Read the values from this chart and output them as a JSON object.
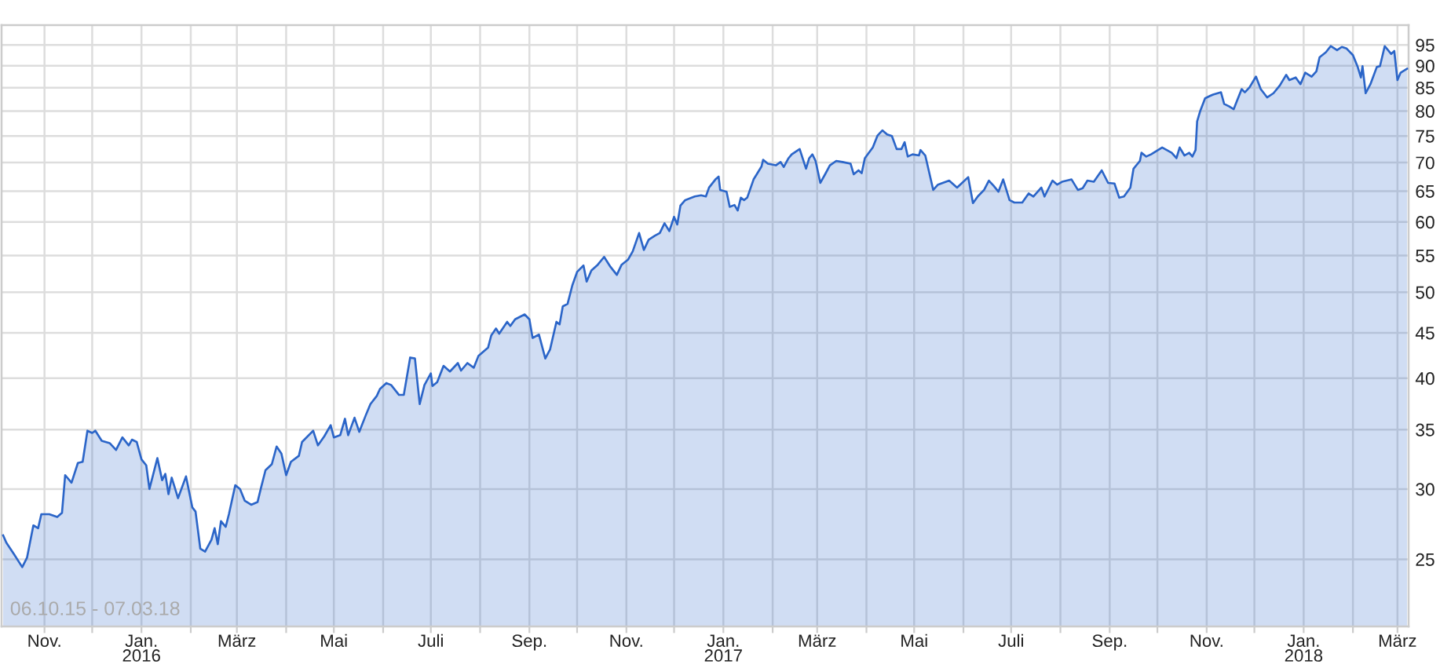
{
  "chart_data": {
    "type": "area",
    "x": [
      "2015-10-06",
      "2015-10-08",
      "2015-10-13",
      "2015-10-18",
      "2015-10-21",
      "2015-10-25",
      "2015-10-28",
      "2015-10-30",
      "2015-11-04",
      "2015-11-09",
      "2015-11-12",
      "2015-11-14",
      "2015-11-18",
      "2015-11-22",
      "2015-11-25",
      "2015-11-28",
      "2015-12-01",
      "2015-12-03",
      "2015-12-07",
      "2015-12-12",
      "2015-12-16",
      "2015-12-20",
      "2015-12-24",
      "2015-12-26",
      "2015-12-29",
      "2016-01-01",
      "2016-01-04",
      "2016-01-06",
      "2016-01-11",
      "2016-01-14",
      "2016-01-16",
      "2016-01-18",
      "2016-01-20",
      "2016-01-24",
      "2016-01-29",
      "2016-02-02",
      "2016-02-04",
      "2016-02-07",
      "2016-02-10",
      "2016-02-14",
      "2016-02-16",
      "2016-02-18",
      "2016-02-20",
      "2016-02-23",
      "2016-02-25",
      "2016-02-29",
      "2016-03-03",
      "2016-03-06",
      "2016-03-10",
      "2016-03-14",
      "2016-03-16",
      "2016-03-19",
      "2016-03-23",
      "2016-03-26",
      "2016-03-29",
      "2016-04-01",
      "2016-04-04",
      "2016-04-09",
      "2016-04-11",
      "2016-04-18",
      "2016-04-21",
      "2016-04-25",
      "2016-04-29",
      "2016-05-01",
      "2016-05-05",
      "2016-05-08",
      "2016-05-10",
      "2016-05-14",
      "2016-05-17",
      "2016-05-21",
      "2016-05-24",
      "2016-05-28",
      "2016-05-30",
      "2016-06-03",
      "2016-06-06",
      "2016-06-11",
      "2016-06-14",
      "2016-06-18",
      "2016-06-21",
      "2016-06-24",
      "2016-06-27",
      "2016-07-01",
      "2016-07-02",
      "2016-07-05",
      "2016-07-09",
      "2016-07-13",
      "2016-07-18",
      "2016-07-20",
      "2016-07-24",
      "2016-07-28",
      "2016-07-31",
      "2016-08-06",
      "2016-08-08",
      "2016-08-11",
      "2016-08-13",
      "2016-08-18",
      "2016-08-20",
      "2016-08-23",
      "2016-08-29",
      "2016-09-01",
      "2016-09-03",
      "2016-09-07",
      "2016-09-11",
      "2016-09-14",
      "2016-09-18",
      "2016-09-20",
      "2016-09-22",
      "2016-09-25",
      "2016-09-28",
      "2016-10-01",
      "2016-10-05",
      "2016-10-07",
      "2016-10-10",
      "2016-10-14",
      "2016-10-18",
      "2016-10-22",
      "2016-10-26",
      "2016-10-29",
      "2016-11-02",
      "2016-11-05",
      "2016-11-09",
      "2016-11-12",
      "2016-11-15",
      "2016-11-19",
      "2016-11-22",
      "2016-11-25",
      "2016-11-28",
      "2016-12-01",
      "2016-12-03",
      "2016-12-05",
      "2016-12-08",
      "2016-12-14",
      "2016-12-18",
      "2016-12-21",
      "2016-12-23",
      "2016-12-27",
      "2016-12-29",
      "2016-12-30",
      "2017-01-03",
      "2017-01-05",
      "2017-01-08",
      "2017-01-10",
      "2017-01-12",
      "2017-01-14",
      "2017-01-16",
      "2017-01-20",
      "2017-01-22",
      "2017-01-25",
      "2017-01-26",
      "2017-01-29",
      "2017-02-03",
      "2017-02-06",
      "2017-02-08",
      "2017-02-11",
      "2017-02-13",
      "2017-02-18",
      "2017-02-22",
      "2017-02-24",
      "2017-02-26",
      "2017-02-28",
      "2017-03-03",
      "2017-03-06",
      "2017-03-09",
      "2017-03-13",
      "2017-03-17",
      "2017-03-22",
      "2017-03-24",
      "2017-03-27",
      "2017-03-29",
      "2017-03-31",
      "2017-04-05",
      "2017-04-08",
      "2017-04-11",
      "2017-04-14",
      "2017-04-17",
      "2017-04-20",
      "2017-04-23",
      "2017-04-25",
      "2017-04-27",
      "2017-04-30",
      "2017-05-04",
      "2017-05-05",
      "2017-05-08",
      "2017-05-13",
      "2017-05-16",
      "2017-05-23",
      "2017-05-28",
      "2017-06-04",
      "2017-06-07",
      "2017-06-10",
      "2017-06-14",
      "2017-06-17",
      "2017-06-20",
      "2017-06-23",
      "2017-06-26",
      "2017-06-30",
      "2017-07-03",
      "2017-07-08",
      "2017-07-12",
      "2017-07-15",
      "2017-07-20",
      "2017-07-22",
      "2017-07-27",
      "2017-07-30",
      "2017-08-02",
      "2017-08-08",
      "2017-08-12",
      "2017-08-15",
      "2017-08-18",
      "2017-08-22",
      "2017-08-27",
      "2017-08-31",
      "2017-09-04",
      "2017-09-07",
      "2017-09-10",
      "2017-09-14",
      "2017-09-16",
      "2017-09-20",
      "2017-09-21",
      "2017-09-24",
      "2017-09-27",
      "2017-10-04",
      "2017-10-10",
      "2017-10-13",
      "2017-10-15",
      "2017-10-18",
      "2017-10-21",
      "2017-10-23",
      "2017-10-25",
      "2017-10-26",
      "2017-10-28",
      "2017-10-31",
      "2017-11-03",
      "2017-11-05",
      "2017-11-10",
      "2017-11-12",
      "2017-11-15",
      "2017-11-18",
      "2017-11-20",
      "2017-11-23",
      "2017-11-25",
      "2017-11-28",
      "2017-12-02",
      "2017-12-05",
      "2017-12-09",
      "2017-12-13",
      "2017-12-17",
      "2017-12-21",
      "2017-12-23",
      "2017-12-27",
      "2017-12-30",
      "2018-01-02",
      "2018-01-06",
      "2018-01-09",
      "2018-01-11",
      "2018-01-15",
      "2018-01-18",
      "2018-01-22",
      "2018-01-25",
      "2018-01-28",
      "2018-02-01",
      "2018-02-04",
      "2018-02-06",
      "2018-02-07",
      "2018-02-09",
      "2018-02-12",
      "2018-02-16",
      "2018-02-18",
      "2018-02-21",
      "2018-02-25",
      "2018-02-27",
      "2018-03-01",
      "2018-03-03",
      "2018-03-07"
    ],
    "series": [
      {
        "color": "#2b65c8",
        "values": [
          26.6,
          26.1,
          25.3,
          24.5,
          25.1,
          27.3,
          27.1,
          28.1,
          28.1,
          27.9,
          28.2,
          31.1,
          30.5,
          32.1,
          32.2,
          34.9,
          34.7,
          34.9,
          34.0,
          33.8,
          33.2,
          34.3,
          33.6,
          34.1,
          33.9,
          32.4,
          31.9,
          30.0,
          32.5,
          30.7,
          31.2,
          29.6,
          30.9,
          29.3,
          31.0,
          28.6,
          28.3,
          25.7,
          25.5,
          26.3,
          27.1,
          26.0,
          27.6,
          27.2,
          28.1,
          30.3,
          30.0,
          29.1,
          28.8,
          29.0,
          30.0,
          31.5,
          32.0,
          33.5,
          32.9,
          31.1,
          32.2,
          32.7,
          33.9,
          34.9,
          33.6,
          34.4,
          35.4,
          34.3,
          34.5,
          36.0,
          34.5,
          36.1,
          34.8,
          36.3,
          37.4,
          38.2,
          38.9,
          39.5,
          39.3,
          38.3,
          38.3,
          42.2,
          42.1,
          37.4,
          39.3,
          40.5,
          39.2,
          39.6,
          41.3,
          40.7,
          41.6,
          40.8,
          41.6,
          41.1,
          42.4,
          43.3,
          44.7,
          45.5,
          44.9,
          46.3,
          45.8,
          46.6,
          47.2,
          46.6,
          44.4,
          44.8,
          42.1,
          43.1,
          46.3,
          46.0,
          48.2,
          48.5,
          50.9,
          52.7,
          53.6,
          51.4,
          52.9,
          53.7,
          54.8,
          53.4,
          52.3,
          53.7,
          54.4,
          55.6,
          58.3,
          55.8,
          57.3,
          57.9,
          58.3,
          59.8,
          58.6,
          60.8,
          59.6,
          62.6,
          63.5,
          64.1,
          64.3,
          64.1,
          65.6,
          67.0,
          67.5,
          65.2,
          64.9,
          62.4,
          62.7,
          61.8,
          63.9,
          63.5,
          63.9,
          67.0,
          67.9,
          69.3,
          70.5,
          69.8,
          69.5,
          70.1,
          69.2,
          70.8,
          71.5,
          72.5,
          68.9,
          70.8,
          71.5,
          70.3,
          66.4,
          67.9,
          69.5,
          70.3,
          70.1,
          69.8,
          67.9,
          68.6,
          68.1,
          70.8,
          72.8,
          75.1,
          76.1,
          75.3,
          75.0,
          72.5,
          72.5,
          73.8,
          71.1,
          71.5,
          71.3,
          72.3,
          71.3,
          65.2,
          66.1,
          66.8,
          65.6,
          67.4,
          63.0,
          64.1,
          65.2,
          66.8,
          65.9,
          64.9,
          67.0,
          63.5,
          63.1,
          63.1,
          64.6,
          64.1,
          65.6,
          64.1,
          66.8,
          66.1,
          66.6,
          67.0,
          65.2,
          65.5,
          66.8,
          66.6,
          68.6,
          66.4,
          66.3,
          63.9,
          64.1,
          65.6,
          68.9,
          70.3,
          71.8,
          71.1,
          71.5,
          72.8,
          71.8,
          70.8,
          72.8,
          71.3,
          71.8,
          71.1,
          72.3,
          77.9,
          80.1,
          82.7,
          83.2,
          83.5,
          84.0,
          81.5,
          81.0,
          80.4,
          82.1,
          84.7,
          84.0,
          85.1,
          87.5,
          84.7,
          82.9,
          83.8,
          85.5,
          87.9,
          86.7,
          87.3,
          85.8,
          88.4,
          87.5,
          88.7,
          92.0,
          93.2,
          94.7,
          93.7,
          94.5,
          94.1,
          92.5,
          89.7,
          87.3,
          89.9,
          83.8,
          85.8,
          89.7,
          89.9,
          94.7,
          92.8,
          93.5,
          86.7,
          88.4,
          89.3
        ]
      }
    ],
    "xlim": [
      "2015-10-05",
      "2018-03-08"
    ],
    "xticks": [
      {
        "value": "2015-11-01",
        "label": "Nov."
      },
      {
        "value": "2015-12-01",
        "label": null
      },
      {
        "value": "2016-01-01",
        "label": "Jan.\n2016"
      },
      {
        "value": "2016-02-01",
        "label": null
      },
      {
        "value": "2016-03-01",
        "label": "März"
      },
      {
        "value": "2016-04-01",
        "label": null
      },
      {
        "value": "2016-05-01",
        "label": "Mai"
      },
      {
        "value": "2016-06-01",
        "label": null
      },
      {
        "value": "2016-07-01",
        "label": "Juli"
      },
      {
        "value": "2016-08-01",
        "label": null
      },
      {
        "value": "2016-09-01",
        "label": "Sep."
      },
      {
        "value": "2016-10-01",
        "label": null
      },
      {
        "value": "2016-11-01",
        "label": "Nov."
      },
      {
        "value": "2016-12-01",
        "label": null
      },
      {
        "value": "2017-01-01",
        "label": "Jan.\n2017"
      },
      {
        "value": "2017-02-01",
        "label": null
      },
      {
        "value": "2017-03-01",
        "label": "März"
      },
      {
        "value": "2017-04-01",
        "label": null
      },
      {
        "value": "2017-05-01",
        "label": "Mai"
      },
      {
        "value": "2017-06-01",
        "label": null
      },
      {
        "value": "2017-07-01",
        "label": "Juli"
      },
      {
        "value": "2017-08-01",
        "label": null
      },
      {
        "value": "2017-09-01",
        "label": "Sep."
      },
      {
        "value": "2017-10-01",
        "label": null
      },
      {
        "value": "2017-11-01",
        "label": "Nov."
      },
      {
        "value": "2017-12-01",
        "label": null
      },
      {
        "value": "2018-01-01",
        "label": "Jan.\n2018"
      },
      {
        "value": "2018-02-01",
        "label": null
      },
      {
        "value": "2018-03-01",
        "label": "März"
      }
    ],
    "ylim": [
      21,
      100
    ],
    "yticks": [
      25,
      30,
      35,
      40,
      45,
      50,
      55,
      60,
      65,
      70,
      75,
      80,
      85,
      90,
      95
    ],
    "log": true,
    "grid": true,
    "annotations": [
      "06.10.15 - 07.03.18"
    ]
  }
}
